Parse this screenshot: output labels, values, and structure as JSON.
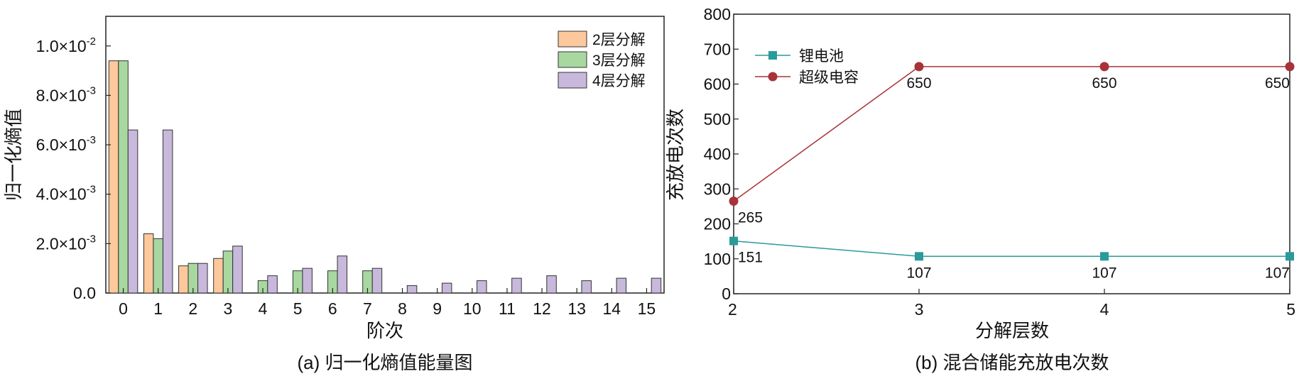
{
  "chart_data": [
    {
      "type": "bar",
      "caption": "(a) 归一化熵值能量图",
      "xlabel": "阶次",
      "ylabel": "归一化熵值",
      "categories": [
        "0",
        "1",
        "2",
        "3",
        "4",
        "5",
        "6",
        "7",
        "8",
        "9",
        "10",
        "11",
        "12",
        "13",
        "14",
        "15"
      ],
      "ylim": [
        0,
        0.0112
      ],
      "yticks": [
        0,
        0.002,
        0.004,
        0.006,
        0.008,
        0.01
      ],
      "ytick_labels": [
        {
          "base": "0.0",
          "exp": ""
        },
        {
          "base": "2.0×10",
          "exp": "-3"
        },
        {
          "base": "4.0×10",
          "exp": "-3"
        },
        {
          "base": "6.0×10",
          "exp": "-3"
        },
        {
          "base": "8.0×10",
          "exp": "-3"
        },
        {
          "base": "1.0×10",
          "exp": "-2"
        }
      ],
      "legend_position": "top-right",
      "grid": false,
      "series": [
        {
          "name": "2层分解",
          "color": "#fcc89c",
          "values": [
            0.0094,
            0.0024,
            0.0011,
            0.0014,
            null,
            null,
            null,
            null,
            null,
            null,
            null,
            null,
            null,
            null,
            null,
            null
          ]
        },
        {
          "name": "3层分解",
          "color": "#a8d8a0",
          "values": [
            0.0094,
            0.0022,
            0.0012,
            0.0017,
            0.0005,
            0.0009,
            0.0009,
            0.0009,
            null,
            null,
            null,
            null,
            null,
            null,
            null,
            null
          ]
        },
        {
          "name": "4层分解",
          "color": "#c8b8dc",
          "values": [
            0.0066,
            0.0066,
            0.0012,
            0.0019,
            0.0007,
            0.001,
            0.0015,
            0.001,
            0.0003,
            0.0004,
            0.0005,
            0.0006,
            0.0007,
            0.0005,
            0.0006,
            0.0006
          ]
        }
      ]
    },
    {
      "type": "line",
      "caption": "(b) 混合储能充放电次数",
      "xlabel": "分解层数",
      "ylabel": "充放电次数",
      "x": [
        2,
        3,
        4,
        5
      ],
      "xlim": [
        2,
        5
      ],
      "ylim": [
        0,
        800
      ],
      "yticks": [
        0,
        100,
        200,
        300,
        400,
        500,
        600,
        700,
        800
      ],
      "legend_position": "top-left",
      "grid": false,
      "series": [
        {
          "name": "锂电池",
          "color": "#2a9a9a",
          "marker": "square",
          "values": [
            151,
            107,
            107,
            107
          ],
          "labels": [
            "151",
            "107",
            "107",
            "107"
          ]
        },
        {
          "name": "超级电容",
          "color": "#a8323a",
          "marker": "circle",
          "values": [
            265,
            650,
            650,
            650
          ],
          "labels": [
            "265",
            "650",
            "650",
            "650"
          ]
        }
      ]
    }
  ]
}
